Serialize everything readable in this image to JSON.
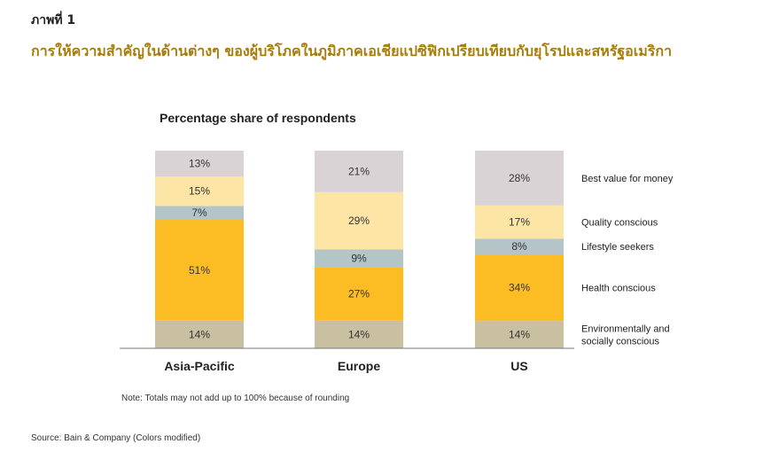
{
  "figure_label": "ภาพที่ 1",
  "thai_title": "การให้ความสำคัญในด้านต่างๆ ของผู้บริโภคในภูมิภาคเอเชียแปซิฟิกเปรียบเทียบกับยุโรปและสหรัฐอเมริกา",
  "note": "Note: Totals may not add up to 100% because of rounding",
  "source": "Source: Bain & Company (Colors modified)",
  "chart_data": {
    "type": "bar",
    "stacked": true,
    "title": "Percentage share of respondents",
    "categories": [
      "Asia-Pacific",
      "Europe",
      "US"
    ],
    "series": [
      {
        "name": "Environmentally and socially conscious",
        "label_lines": [
          "Environmentally and",
          "socially conscious"
        ],
        "values": [
          14,
          14,
          14
        ],
        "color": "#c9bfa1"
      },
      {
        "name": "Health conscious",
        "label_lines": [
          "Health conscious"
        ],
        "values": [
          51,
          27,
          34
        ],
        "color": "#fbbd23"
      },
      {
        "name": "Lifestyle seekers",
        "label_lines": [
          "Lifestyle seekers"
        ],
        "values": [
          7,
          9,
          8
        ],
        "color": "#b3c5c6"
      },
      {
        "name": "Quality conscious",
        "label_lines": [
          "Quality conscious"
        ],
        "values": [
          15,
          29,
          17
        ],
        "color": "#fde6a5"
      },
      {
        "name": "Best value for money",
        "label_lines": [
          "Best value for money"
        ],
        "values": [
          13,
          21,
          28
        ],
        "color": "#d9d3d5"
      }
    ],
    "value_suffix": "%",
    "legend_position": "right"
  }
}
